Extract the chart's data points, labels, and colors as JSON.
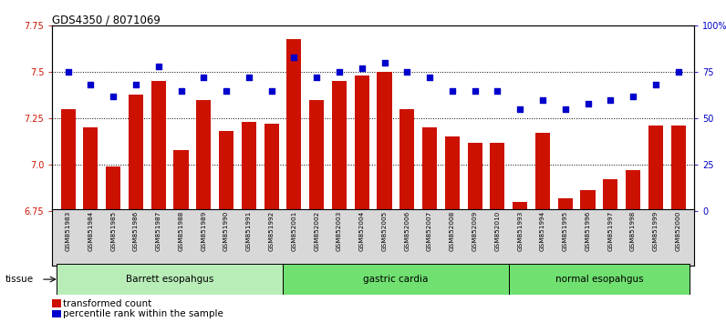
{
  "title": "GDS4350 / 8071069",
  "samples": [
    "GSM851983",
    "GSM851984",
    "GSM851985",
    "GSM851986",
    "GSM851987",
    "GSM851988",
    "GSM851989",
    "GSM851990",
    "GSM851991",
    "GSM851992",
    "GSM852001",
    "GSM852002",
    "GSM852003",
    "GSM852004",
    "GSM852005",
    "GSM852006",
    "GSM852007",
    "GSM852008",
    "GSM852009",
    "GSM852010",
    "GSM851993",
    "GSM851994",
    "GSM851995",
    "GSM851996",
    "GSM851997",
    "GSM851998",
    "GSM851999",
    "GSM852000"
  ],
  "bar_values": [
    7.3,
    7.2,
    6.99,
    7.38,
    7.45,
    7.08,
    7.35,
    7.18,
    7.23,
    7.22,
    7.68,
    7.35,
    7.45,
    7.48,
    7.5,
    7.3,
    7.2,
    7.15,
    7.12,
    7.12,
    6.8,
    7.17,
    6.82,
    6.86,
    6.92,
    6.97,
    7.21,
    7.21
  ],
  "percentile_values": [
    75,
    68,
    62,
    68,
    78,
    65,
    72,
    65,
    72,
    65,
    83,
    72,
    75,
    77,
    80,
    75,
    72,
    65,
    65,
    65,
    55,
    60,
    55,
    58,
    60,
    62,
    68,
    75
  ],
  "groups": [
    {
      "label": "Barrett esopahgus",
      "start": 0,
      "end": 9,
      "color": "#b8edb8"
    },
    {
      "label": "gastric cardia",
      "start": 10,
      "end": 19,
      "color": "#70e070"
    },
    {
      "label": "normal esopahgus",
      "start": 20,
      "end": 27,
      "color": "#70e070"
    }
  ],
  "ylim_left": [
    6.75,
    7.75
  ],
  "ylim_right": [
    0,
    100
  ],
  "yticks_left": [
    6.75,
    7.0,
    7.25,
    7.5,
    7.75
  ],
  "yticks_right": [
    0,
    25,
    50,
    75,
    100
  ],
  "hlines": [
    7.0,
    7.25,
    7.5
  ],
  "bar_color": "#cc1100",
  "dot_color": "#0000cc",
  "bg_plot": "#ffffff",
  "bg_xlabels": "#d8d8d8",
  "legend_bar_label": "transformed count",
  "legend_dot_label": "percentile rank within the sample",
  "tissue_label": "tissue",
  "bar_width": 0.65
}
